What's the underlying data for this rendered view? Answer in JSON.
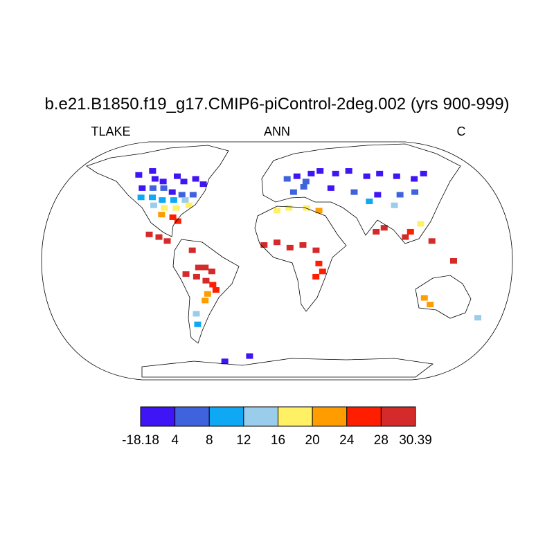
{
  "chart_data": {
    "type": "map",
    "title": "b.e21.B1850.f19_g17.CMIP6-piControl-2deg.002 (yrs 900-999)",
    "left_label": "TLAKE",
    "center_label": "ANN",
    "right_label": "C",
    "colorbar": {
      "levels": [
        -18.18,
        4,
        8,
        12,
        16,
        20,
        24,
        28,
        30.39
      ],
      "colors": [
        "#3f14f5",
        "#3f63dc",
        "#0ea8f5",
        "#9acdec",
        "#fff064",
        "#ff9c00",
        "#ff1e00",
        "#d42a2a"
      ]
    },
    "cells": {
      "lon": [
        -140,
        -130,
        -120,
        -110,
        -100,
        -90,
        -80,
        -70,
        -125,
        -115,
        -105,
        -95,
        -85,
        -75,
        -120,
        -110,
        -100,
        -90,
        -80,
        -105,
        -95,
        -85,
        -75,
        -95,
        -85,
        -80,
        -100,
        -92,
        -85,
        -65,
        -60,
        -55,
        -50,
        -70,
        -62,
        -55,
        -50,
        -48,
        -55,
        -58,
        -68,
        -70,
        10,
        20,
        28,
        35,
        15,
        25,
        45,
        60,
        75,
        90,
        105,
        120,
        135,
        150,
        50,
        70,
        90,
        110,
        125,
        80,
        100,
        0,
        10,
        25,
        35,
        -10,
        0,
        10,
        20,
        30,
        32,
        35,
        30,
        78,
        85,
        100,
        105,
        115,
        120,
        135,
        118,
        125,
        172,
        -60,
        -30
      ],
      "lat": [
        65,
        68,
        62,
        60,
        64,
        60,
        62,
        58,
        55,
        55,
        55,
        52,
        50,
        50,
        48,
        48,
        46,
        46,
        46,
        42,
        40,
        40,
        42,
        35,
        33,
        30,
        20,
        18,
        15,
        8,
        -5,
        -5,
        -8,
        -10,
        -12,
        -15,
        -18,
        -22,
        -25,
        -30,
        -40,
        -48,
        62,
        64,
        60,
        66,
        52,
        56,
        68,
        66,
        68,
        64,
        66,
        64,
        62,
        66,
        55,
        52,
        50,
        50,
        52,
        45,
        42,
        38,
        40,
        40,
        38,
        12,
        14,
        10,
        12,
        8,
        -2,
        -8,
        -12,
        22,
        25,
        18,
        22,
        28,
        15,
        0,
        -28,
        -33,
        -43,
        -76,
        -72
      ],
      "values": [
        -10,
        -12,
        -8,
        -6,
        -14,
        -9,
        -7,
        -4,
        2,
        5,
        6,
        3,
        6,
        7,
        9,
        10,
        11,
        10,
        13,
        14,
        17,
        19,
        18,
        22,
        24,
        27,
        29,
        28,
        29,
        29,
        30,
        29,
        30,
        29,
        29,
        28,
        27,
        26,
        23,
        21,
        14,
        11,
        6,
        3,
        5,
        -2,
        6,
        7,
        -12,
        -10,
        -8,
        -11,
        -9,
        -12,
        -7,
        -14,
        2,
        5,
        3,
        7,
        6,
        10,
        14,
        18,
        19,
        18,
        22,
        29,
        28,
        29,
        28,
        29,
        27,
        25,
        24,
        29,
        28,
        29,
        27,
        17,
        29,
        29,
        21,
        23,
        13,
        -16,
        -15
      ]
    }
  }
}
